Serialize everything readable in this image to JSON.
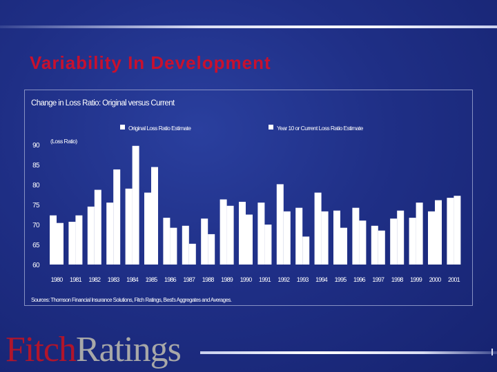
{
  "slide": {
    "title": "Variability In Development",
    "logo": {
      "fitch": "Fitch",
      "ratings": "Ratings"
    }
  },
  "chart_data": {
    "type": "bar",
    "title": "Change in Loss Ratio: Original versus Current",
    "ylabel": "(Loss Ratio)",
    "xlabel": "",
    "ylim": [
      60,
      90
    ],
    "yticks": [
      60,
      65,
      70,
      75,
      80,
      85,
      90
    ],
    "legend_position": "top",
    "categories": [
      "1980",
      "1981",
      "1982",
      "1983",
      "1984",
      "1985",
      "1986",
      "1987",
      "1988",
      "1989",
      "1990",
      "1991",
      "1992",
      "1993",
      "1994",
      "1995",
      "1996",
      "1997",
      "1998",
      "1999",
      "2000",
      "2001"
    ],
    "series": [
      {
        "name": "Original Loss Ratio Estimate",
        "values": [
          72.3,
          70.7,
          74.5,
          75.5,
          79.0,
          78.0,
          71.7,
          69.7,
          71.5,
          76.3,
          75.7,
          75.5,
          80.1,
          74.2,
          78.0,
          73.5,
          74.2,
          69.7,
          71.5,
          71.7,
          73.3,
          76.7
        ]
      },
      {
        "name": "Year 10 or Current Loss Ratio Estimate",
        "values": [
          70.4,
          72.3,
          78.7,
          83.8,
          89.7,
          84.4,
          69.2,
          65.2,
          67.6,
          74.7,
          72.5,
          70.0,
          73.3,
          67.0,
          73.3,
          69.2,
          71.0,
          68.5,
          73.5,
          75.5,
          76.1,
          77.2
        ]
      }
    ],
    "source": "Sources: Thomson Financial Insurance Solutions, Fitch Ratings, Best's Aggregates and Averages.",
    "colors": {
      "background": "#1f2f86",
      "bar": "#ffffff",
      "text": "#ffffff",
      "frame": "#8892c4"
    }
  }
}
